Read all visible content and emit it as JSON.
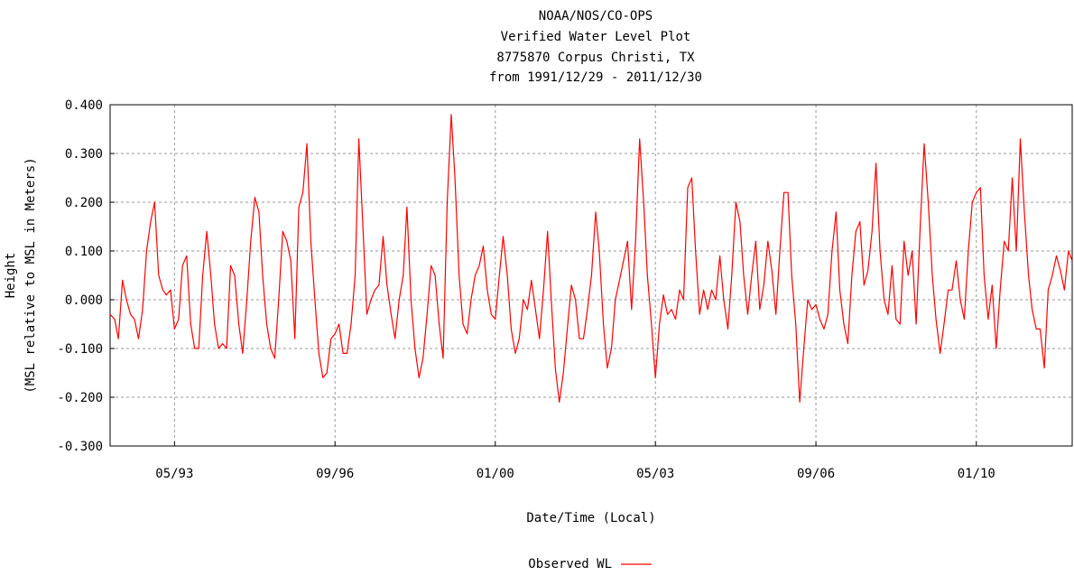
{
  "chart_data": {
    "type": "line",
    "title_lines": [
      "NOAA/NOS/CO-OPS",
      "Verified  Water Level Plot",
      "8775870 Corpus Christi, TX",
      "from 1991/12/29 - 2011/12/30"
    ],
    "xlabel": "Date/Time (Local)",
    "ylabel_lines": [
      "Height",
      "(MSL relative to MSL in Meters)"
    ],
    "xlim": [
      "1991-12-29",
      "2011-12-30"
    ],
    "ylim": [
      -0.3,
      0.4
    ],
    "y_ticks": [
      0.4,
      0.3,
      0.2,
      0.1,
      0.0,
      -0.1,
      -0.2,
      -0.3
    ],
    "y_tick_labels": [
      "0.400",
      "0.300",
      "0.200",
      "0.100",
      "0.000",
      "-0.100",
      "-0.200",
      "-0.300"
    ],
    "x_ticks": [
      "1993-05-01",
      "1996-09-01",
      "2000-01-01",
      "2003-05-01",
      "2006-09-01",
      "2010-01-01"
    ],
    "x_tick_labels": [
      "05/93",
      "09/96",
      "01/00",
      "05/03",
      "09/06",
      "01/10"
    ],
    "grid": true,
    "legend_position": "bottom-center",
    "series": [
      {
        "name": "Observed WL",
        "color": "#ff0000",
        "points": [
          [
            "1991-12-29",
            -0.03
          ],
          [
            "1992-02-01",
            -0.04
          ],
          [
            "1992-03-01",
            -0.08
          ],
          [
            "1992-04-01",
            0.04
          ],
          [
            "1992-05-01",
            0.0
          ],
          [
            "1992-06-01",
            -0.03
          ],
          [
            "1992-07-01",
            -0.04
          ],
          [
            "1992-08-01",
            -0.08
          ],
          [
            "1992-09-01",
            -0.02
          ],
          [
            "1992-10-01",
            0.1
          ],
          [
            "1992-11-01",
            0.16
          ],
          [
            "1992-12-01",
            0.2
          ],
          [
            "1993-01-01",
            0.05
          ],
          [
            "1993-02-01",
            0.02
          ],
          [
            "1993-03-01",
            0.01
          ],
          [
            "1993-04-01",
            0.02
          ],
          [
            "1993-05-01",
            -0.06
          ],
          [
            "1993-06-01",
            -0.04
          ],
          [
            "1993-07-01",
            0.07
          ],
          [
            "1993-08-01",
            0.09
          ],
          [
            "1993-09-01",
            -0.05
          ],
          [
            "1993-10-01",
            -0.1
          ],
          [
            "1993-11-01",
            -0.1
          ],
          [
            "1993-12-01",
            0.05
          ],
          [
            "1994-01-01",
            0.14
          ],
          [
            "1994-02-01",
            0.05
          ],
          [
            "1994-03-01",
            -0.05
          ],
          [
            "1994-04-01",
            -0.1
          ],
          [
            "1994-05-01",
            -0.09
          ],
          [
            "1994-06-01",
            -0.1
          ],
          [
            "1994-07-01",
            0.07
          ],
          [
            "1994-08-01",
            0.05
          ],
          [
            "1994-09-01",
            -0.05
          ],
          [
            "1994-10-01",
            -0.11
          ],
          [
            "1994-11-01",
            0.0
          ],
          [
            "1994-12-01",
            0.12
          ],
          [
            "1995-01-01",
            0.21
          ],
          [
            "1995-02-01",
            0.18
          ],
          [
            "1995-03-01",
            0.05
          ],
          [
            "1995-04-01",
            -0.05
          ],
          [
            "1995-05-01",
            -0.1
          ],
          [
            "1995-06-01",
            -0.12
          ],
          [
            "1995-07-01",
            0.0
          ],
          [
            "1995-08-01",
            0.14
          ],
          [
            "1995-09-01",
            0.12
          ],
          [
            "1995-10-01",
            0.08
          ],
          [
            "1995-11-01",
            -0.08
          ],
          [
            "1995-12-01",
            0.19
          ],
          [
            "1996-01-01",
            0.22
          ],
          [
            "1996-02-01",
            0.32
          ],
          [
            "1996-03-01",
            0.12
          ],
          [
            "1996-04-01",
            0.0
          ],
          [
            "1996-05-01",
            -0.11
          ],
          [
            "1996-06-01",
            -0.16
          ],
          [
            "1996-07-01",
            -0.15
          ],
          [
            "1996-08-01",
            -0.08
          ],
          [
            "1996-09-01",
            -0.07
          ],
          [
            "1996-10-01",
            -0.05
          ],
          [
            "1996-11-01",
            -0.11
          ],
          [
            "1996-12-01",
            -0.11
          ],
          [
            "1997-01-01",
            -0.05
          ],
          [
            "1997-02-01",
            0.05
          ],
          [
            "1997-03-01",
            0.33
          ],
          [
            "1997-04-01",
            0.15
          ],
          [
            "1997-05-01",
            -0.03
          ],
          [
            "1997-06-01",
            0.0
          ],
          [
            "1997-07-01",
            0.02
          ],
          [
            "1997-08-01",
            0.03
          ],
          [
            "1997-09-01",
            0.13
          ],
          [
            "1997-10-01",
            0.03
          ],
          [
            "1997-11-01",
            -0.03
          ],
          [
            "1997-12-01",
            -0.08
          ],
          [
            "1998-01-01",
            0.0
          ],
          [
            "1998-02-01",
            0.05
          ],
          [
            "1998-03-01",
            0.19
          ],
          [
            "1998-04-01",
            0.0
          ],
          [
            "1998-05-01",
            -0.1
          ],
          [
            "1998-06-01",
            -0.16
          ],
          [
            "1998-07-01",
            -0.12
          ],
          [
            "1998-08-01",
            -0.03
          ],
          [
            "1998-09-01",
            0.07
          ],
          [
            "1998-10-01",
            0.05
          ],
          [
            "1998-11-01",
            -0.05
          ],
          [
            "1998-12-01",
            -0.12
          ],
          [
            "1999-01-01",
            0.2
          ],
          [
            "1999-02-01",
            0.38
          ],
          [
            "1999-03-01",
            0.25
          ],
          [
            "1999-04-01",
            0.05
          ],
          [
            "1999-05-01",
            -0.05
          ],
          [
            "1999-06-01",
            -0.07
          ],
          [
            "1999-07-01",
            0.0
          ],
          [
            "1999-08-01",
            0.05
          ],
          [
            "1999-09-01",
            0.07
          ],
          [
            "1999-10-01",
            0.11
          ],
          [
            "1999-11-01",
            0.02
          ],
          [
            "1999-12-01",
            -0.03
          ],
          [
            "2000-01-01",
            -0.04
          ],
          [
            "2000-02-01",
            0.05
          ],
          [
            "2000-03-01",
            0.13
          ],
          [
            "2000-04-01",
            0.05
          ],
          [
            "2000-05-01",
            -0.06
          ],
          [
            "2000-06-01",
            -0.11
          ],
          [
            "2000-07-01",
            -0.08
          ],
          [
            "2000-08-01",
            0.0
          ],
          [
            "2000-09-01",
            -0.02
          ],
          [
            "2000-10-01",
            0.04
          ],
          [
            "2000-11-01",
            -0.02
          ],
          [
            "2000-12-01",
            -0.08
          ],
          [
            "2001-01-01",
            0.02
          ],
          [
            "2001-02-01",
            0.14
          ],
          [
            "2001-03-01",
            0.0
          ],
          [
            "2001-04-01",
            -0.14
          ],
          [
            "2001-05-01",
            -0.21
          ],
          [
            "2001-06-01",
            -0.15
          ],
          [
            "2001-07-01",
            -0.06
          ],
          [
            "2001-08-01",
            0.03
          ],
          [
            "2001-09-01",
            0.0
          ],
          [
            "2001-10-01",
            -0.08
          ],
          [
            "2001-11-01",
            -0.08
          ],
          [
            "2001-12-01",
            -0.02
          ],
          [
            "2002-01-01",
            0.05
          ],
          [
            "2002-02-01",
            0.18
          ],
          [
            "2002-03-01",
            0.1
          ],
          [
            "2002-04-01",
            -0.05
          ],
          [
            "2002-05-01",
            -0.14
          ],
          [
            "2002-06-01",
            -0.1
          ],
          [
            "2002-07-01",
            0.0
          ],
          [
            "2002-08-01",
            0.04
          ],
          [
            "2002-09-01",
            0.08
          ],
          [
            "2002-10-01",
            0.12
          ],
          [
            "2002-11-01",
            -0.02
          ],
          [
            "2002-12-01",
            0.12
          ],
          [
            "2003-01-01",
            0.33
          ],
          [
            "2003-02-01",
            0.2
          ],
          [
            "2003-03-01",
            0.05
          ],
          [
            "2003-04-01",
            -0.05
          ],
          [
            "2003-05-01",
            -0.16
          ],
          [
            "2003-06-01",
            -0.05
          ],
          [
            "2003-07-01",
            0.01
          ],
          [
            "2003-08-01",
            -0.03
          ],
          [
            "2003-09-01",
            -0.02
          ],
          [
            "2003-10-01",
            -0.04
          ],
          [
            "2003-11-01",
            0.02
          ],
          [
            "2003-12-01",
            0.0
          ],
          [
            "2004-01-01",
            0.23
          ],
          [
            "2004-02-01",
            0.25
          ],
          [
            "2004-03-01",
            0.1
          ],
          [
            "2004-04-01",
            -0.03
          ],
          [
            "2004-05-01",
            0.02
          ],
          [
            "2004-06-01",
            -0.02
          ],
          [
            "2004-07-01",
            0.02
          ],
          [
            "2004-08-01",
            0.0
          ],
          [
            "2004-09-01",
            0.09
          ],
          [
            "2004-10-01",
            0.0
          ],
          [
            "2004-11-01",
            -0.06
          ],
          [
            "2004-12-01",
            0.05
          ],
          [
            "2005-01-01",
            0.2
          ],
          [
            "2005-02-01",
            0.16
          ],
          [
            "2005-03-01",
            0.05
          ],
          [
            "2005-04-01",
            -0.03
          ],
          [
            "2005-05-01",
            0.05
          ],
          [
            "2005-06-01",
            0.12
          ],
          [
            "2005-07-01",
            -0.02
          ],
          [
            "2005-08-01",
            0.03
          ],
          [
            "2005-09-01",
            0.12
          ],
          [
            "2005-10-01",
            0.06
          ],
          [
            "2005-11-01",
            -0.03
          ],
          [
            "2005-12-01",
            0.1
          ],
          [
            "2006-01-01",
            0.22
          ],
          [
            "2006-02-01",
            0.22
          ],
          [
            "2006-03-01",
            0.05
          ],
          [
            "2006-04-01",
            -0.05
          ],
          [
            "2006-05-01",
            -0.21
          ],
          [
            "2006-06-01",
            -0.1
          ],
          [
            "2006-07-01",
            0.0
          ],
          [
            "2006-08-01",
            -0.02
          ],
          [
            "2006-09-01",
            -0.01
          ],
          [
            "2006-10-01",
            -0.04
          ],
          [
            "2006-11-01",
            -0.06
          ],
          [
            "2006-12-01",
            -0.03
          ],
          [
            "2007-01-01",
            0.1
          ],
          [
            "2007-02-01",
            0.18
          ],
          [
            "2007-03-01",
            0.02
          ],
          [
            "2007-04-01",
            -0.05
          ],
          [
            "2007-05-01",
            -0.09
          ],
          [
            "2007-06-01",
            0.05
          ],
          [
            "2007-07-01",
            0.14
          ],
          [
            "2007-08-01",
            0.16
          ],
          [
            "2007-09-01",
            0.03
          ],
          [
            "2007-10-01",
            0.06
          ],
          [
            "2007-11-01",
            0.14
          ],
          [
            "2007-12-01",
            0.28
          ],
          [
            "2008-01-01",
            0.1
          ],
          [
            "2008-02-01",
            0.0
          ],
          [
            "2008-03-01",
            -0.03
          ],
          [
            "2008-04-01",
            0.07
          ],
          [
            "2008-05-01",
            -0.04
          ],
          [
            "2008-06-01",
            -0.05
          ],
          [
            "2008-07-01",
            0.12
          ],
          [
            "2008-08-01",
            0.05
          ],
          [
            "2008-09-01",
            0.1
          ],
          [
            "2008-10-01",
            -0.05
          ],
          [
            "2008-11-01",
            0.15
          ],
          [
            "2008-12-01",
            0.32
          ],
          [
            "2009-01-01",
            0.2
          ],
          [
            "2009-02-01",
            0.05
          ],
          [
            "2009-03-01",
            -0.04
          ],
          [
            "2009-04-01",
            -0.11
          ],
          [
            "2009-05-01",
            -0.05
          ],
          [
            "2009-06-01",
            0.02
          ],
          [
            "2009-07-01",
            0.02
          ],
          [
            "2009-08-01",
            0.08
          ],
          [
            "2009-09-01",
            0.0
          ],
          [
            "2009-10-01",
            -0.04
          ],
          [
            "2009-11-01",
            0.1
          ],
          [
            "2009-12-01",
            0.2
          ],
          [
            "2010-01-01",
            0.22
          ],
          [
            "2010-02-01",
            0.23
          ],
          [
            "2010-03-01",
            0.05
          ],
          [
            "2010-04-01",
            -0.04
          ],
          [
            "2010-05-01",
            0.03
          ],
          [
            "2010-06-01",
            -0.1
          ],
          [
            "2010-07-01",
            0.02
          ],
          [
            "2010-08-01",
            0.12
          ],
          [
            "2010-09-01",
            0.1
          ],
          [
            "2010-10-01",
            0.25
          ],
          [
            "2010-11-01",
            0.1
          ],
          [
            "2010-12-01",
            0.33
          ],
          [
            "2011-01-01",
            0.18
          ],
          [
            "2011-02-01",
            0.05
          ],
          [
            "2011-03-01",
            -0.02
          ],
          [
            "2011-04-01",
            -0.06
          ],
          [
            "2011-05-01",
            -0.06
          ],
          [
            "2011-06-01",
            -0.14
          ],
          [
            "2011-07-01",
            0.02
          ],
          [
            "2011-08-01",
            0.05
          ],
          [
            "2011-09-01",
            0.09
          ],
          [
            "2011-10-01",
            0.06
          ],
          [
            "2011-11-01",
            0.02
          ],
          [
            "2011-12-01",
            0.1
          ],
          [
            "2011-12-30",
            0.08
          ]
        ]
      }
    ]
  }
}
